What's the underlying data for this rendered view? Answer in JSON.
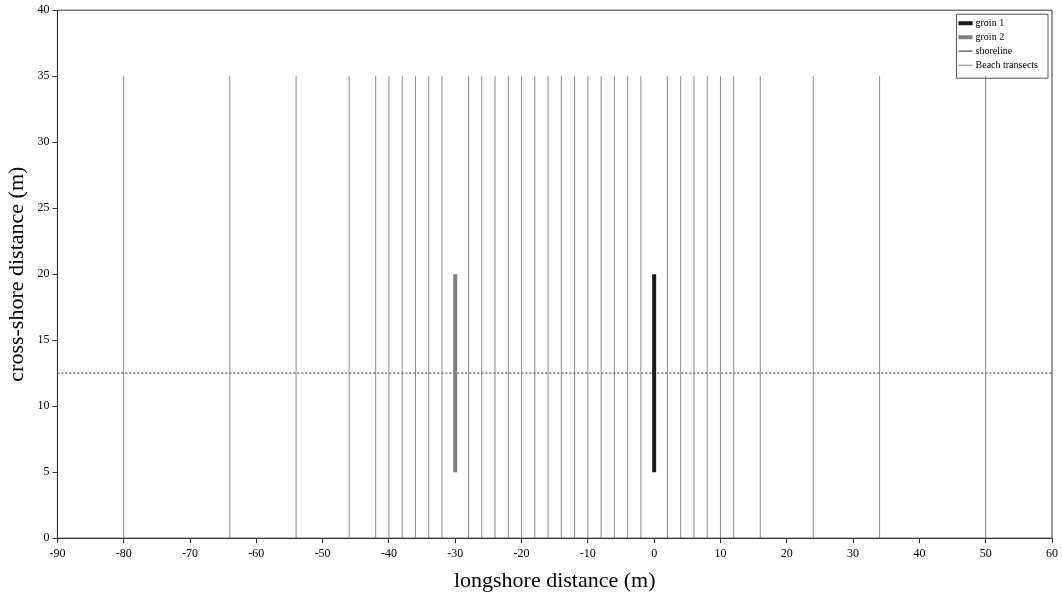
{
  "chart_data": {
    "type": "line",
    "xlabel": "longshore distance (m)",
    "ylabel": "cross-shore distance (m)",
    "xlim": [
      -90,
      60
    ],
    "xticks": [
      -90,
      -80,
      -70,
      -60,
      -50,
      -40,
      -30,
      -20,
      -10,
      0,
      10,
      20,
      30,
      40,
      50,
      60
    ],
    "ylim": [
      0,
      40
    ],
    "yticks": [
      0,
      5,
      10,
      15,
      20,
      25,
      30,
      35,
      40
    ],
    "grid": false,
    "legend": "top right",
    "marker": "none",
    "series": [
      {
        "name": "groin 1",
        "color": "#1a1a1a",
        "line_style": "solid",
        "x": [
          0,
          0
        ],
        "values": [
          5,
          20
        ]
      },
      {
        "name": "groin 2",
        "color": "#808080",
        "line_style": "solid",
        "x": [
          -30,
          -30
        ],
        "values": [
          5,
          20
        ]
      },
      {
        "name": "shoreline",
        "color": "#555555",
        "line_style": "dotted",
        "x": [
          -90,
          60
        ],
        "values": [
          12.5,
          12.5
        ]
      },
      {
        "name": "Beach transects",
        "color": "#8c8c8c",
        "line_style": "solid",
        "x": [
          -80,
          -80
        ],
        "values": [
          0,
          35
        ]
      },
      {
        "color": "#8c8c8c",
        "line_style": "solid",
        "x": [
          -64,
          -64
        ],
        "values": [
          0,
          35
        ]
      },
      {
        "color": "#8c8c8c",
        "line_style": "solid",
        "x": [
          -54,
          -54
        ],
        "values": [
          0,
          35
        ]
      },
      {
        "color": "#8c8c8c",
        "line_style": "solid",
        "x": [
          -46,
          -46
        ],
        "values": [
          0,
          35
        ]
      },
      {
        "color": "#8c8c8c",
        "line_style": "solid",
        "x": [
          -42,
          -42
        ],
        "values": [
          0,
          35
        ]
      },
      {
        "color": "#8c8c8c",
        "line_style": "solid",
        "x": [
          -40,
          -40
        ],
        "values": [
          0,
          35
        ]
      },
      {
        "color": "#8c8c8c",
        "line_style": "solid",
        "x": [
          -38,
          -38
        ],
        "values": [
          0,
          35
        ]
      },
      {
        "color": "#8c8c8c",
        "line_style": "solid",
        "x": [
          -36,
          -36
        ],
        "values": [
          0,
          35
        ]
      },
      {
        "color": "#8c8c8c",
        "line_style": "solid",
        "x": [
          -34,
          -34
        ],
        "values": [
          0,
          35
        ]
      },
      {
        "color": "#8c8c8c",
        "line_style": "solid",
        "x": [
          -32,
          -32
        ],
        "values": [
          0,
          35
        ]
      },
      {
        "color": "#8c8c8c",
        "line_style": "solid",
        "x": [
          -28,
          -28
        ],
        "values": [
          0,
          35
        ]
      },
      {
        "color": "#8c8c8c",
        "line_style": "solid",
        "x": [
          -26,
          -26
        ],
        "values": [
          0,
          35
        ]
      },
      {
        "color": "#8c8c8c",
        "line_style": "solid",
        "x": [
          -24,
          -24
        ],
        "values": [
          0,
          35
        ]
      },
      {
        "color": "#8c8c8c",
        "line_style": "solid",
        "x": [
          -22,
          -22
        ],
        "values": [
          0,
          35
        ]
      },
      {
        "color": "#8c8c8c",
        "line_style": "solid",
        "x": [
          -20,
          -20
        ],
        "values": [
          0,
          35
        ]
      },
      {
        "color": "#8c8c8c",
        "line_style": "solid",
        "x": [
          -18,
          -18
        ],
        "values": [
          0,
          35
        ]
      },
      {
        "color": "#8c8c8c",
        "line_style": "solid",
        "x": [
          -16,
          -16
        ],
        "values": [
          0,
          35
        ]
      },
      {
        "color": "#8c8c8c",
        "line_style": "solid",
        "x": [
          -14,
          -14
        ],
        "values": [
          0,
          35
        ]
      },
      {
        "color": "#8c8c8c",
        "line_style": "solid",
        "x": [
          -12,
          -12
        ],
        "values": [
          0,
          35
        ]
      },
      {
        "color": "#8c8c8c",
        "line_style": "solid",
        "x": [
          -10,
          -10
        ],
        "values": [
          0,
          35
        ]
      },
      {
        "color": "#8c8c8c",
        "line_style": "solid",
        "x": [
          -8,
          -8
        ],
        "values": [
          0,
          35
        ]
      },
      {
        "color": "#8c8c8c",
        "line_style": "solid",
        "x": [
          -6,
          -6
        ],
        "values": [
          0,
          35
        ]
      },
      {
        "color": "#8c8c8c",
        "line_style": "solid",
        "x": [
          -4,
          -4
        ],
        "values": [
          0,
          35
        ]
      },
      {
        "color": "#8c8c8c",
        "line_style": "solid",
        "x": [
          -2,
          -2
        ],
        "values": [
          0,
          35
        ]
      },
      {
        "color": "#8c8c8c",
        "line_style": "solid",
        "x": [
          2,
          2
        ],
        "values": [
          0,
          35
        ]
      },
      {
        "color": "#8c8c8c",
        "line_style": "solid",
        "x": [
          4,
          4
        ],
        "values": [
          0,
          35
        ]
      },
      {
        "color": "#8c8c8c",
        "line_style": "solid",
        "x": [
          6,
          6
        ],
        "values": [
          0,
          35
        ]
      },
      {
        "color": "#8c8c8c",
        "line_style": "solid",
        "x": [
          8,
          8
        ],
        "values": [
          0,
          35
        ]
      },
      {
        "color": "#8c8c8c",
        "line_style": "solid",
        "x": [
          10,
          10
        ],
        "values": [
          0,
          35
        ]
      },
      {
        "color": "#8c8c8c",
        "line_style": "solid",
        "x": [
          12,
          12
        ],
        "values": [
          0,
          35
        ]
      },
      {
        "color": "#8c8c8c",
        "line_style": "solid",
        "x": [
          16,
          16
        ],
        "values": [
          0,
          35
        ]
      },
      {
        "color": "#8c8c8c",
        "line_style": "solid",
        "x": [
          24,
          24
        ],
        "values": [
          0,
          35
        ]
      },
      {
        "color": "#8c8c8c",
        "line_style": "solid",
        "x": [
          34,
          34
        ],
        "values": [
          0,
          35
        ]
      },
      {
        "color": "#8c8c8c",
        "line_style": "solid",
        "x": [
          50,
          50
        ],
        "values": [
          0,
          35
        ]
      }
    ]
  }
}
